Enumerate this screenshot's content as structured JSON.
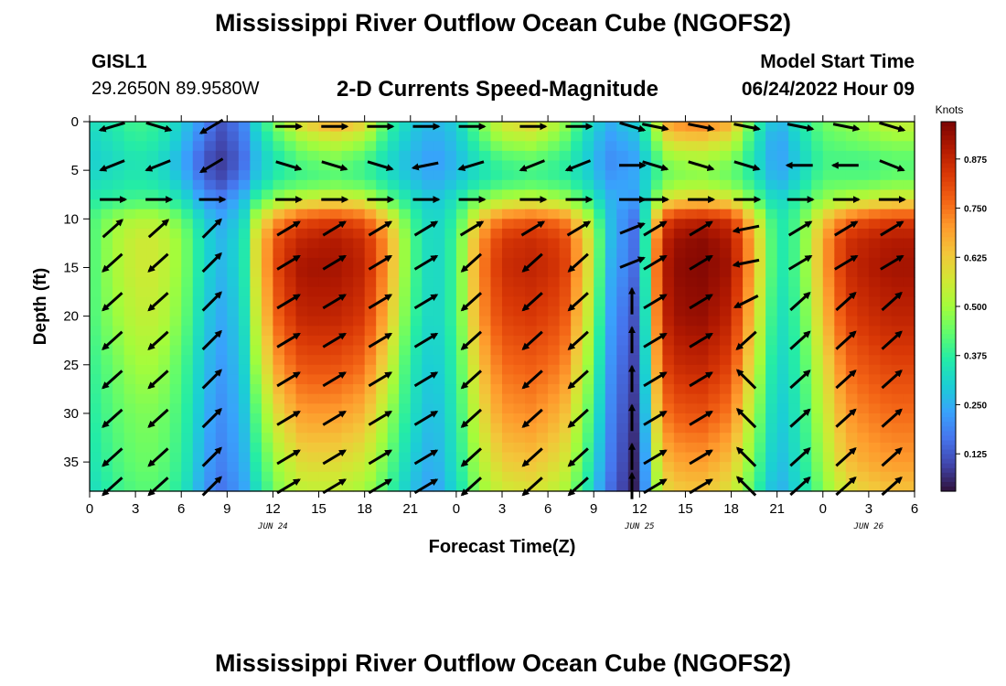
{
  "header": {
    "title": "Mississippi River Outflow Ocean Cube (NGOFS2)",
    "station": "GISL1",
    "coords": "29.2650N  89.9580W",
    "subtitle": "2-D Currents Speed-Magnitude",
    "model_start_label": "Model Start Time",
    "model_start_value": "06/24/2022 Hour 09",
    "footer_title": "Mississippi River Outflow Ocean Cube (NGOFS2)"
  },
  "colors": {
    "colormap": [
      "#30123b",
      "#4145ab",
      "#4675ed",
      "#39a2fc",
      "#1bcfd4",
      "#24eca6",
      "#61fc6c",
      "#a4fc3b",
      "#d1e834",
      "#f3c63a",
      "#fe9b2d",
      "#f36315",
      "#d93806",
      "#b11901",
      "#7a0403"
    ]
  },
  "chart_data": {
    "type": "heatmap",
    "title": "2-D Currents Speed-Magnitude",
    "xlabel": "Forecast Time(Z)",
    "ylabel": "Depth (ft)",
    "colorbar_label": "Knots",
    "x_tick_labels": [
      "0",
      "3",
      "6",
      "9",
      "12",
      "15",
      "18",
      "21",
      "0",
      "3",
      "6",
      "9",
      "12",
      "15",
      "18",
      "21",
      "0",
      "3",
      "6"
    ],
    "date_labels": [
      {
        "label": "JUN 24",
        "hour": 12
      },
      {
        "label": "JUN 25",
        "hour": 36
      },
      {
        "label": "JUN 26",
        "hour": 51
      }
    ],
    "xlim": [
      0,
      54
    ],
    "y_ticks": [
      0,
      5,
      10,
      15,
      20,
      25,
      30,
      35
    ],
    "ylim": [
      0,
      38
    ],
    "colorbar_ticks": [
      0.125,
      0.25,
      0.375,
      0.5,
      0.625,
      0.75,
      0.875
    ],
    "colorbar_tick_labels": [
      "0.125",
      "0.250",
      "0.375",
      "0.500",
      "0.625",
      "0.750",
      "0.875"
    ],
    "colorbar_range": [
      0.03,
      0.97
    ],
    "speed_field": {
      "x_hours": [
        0,
        1.5,
        3,
        4.5,
        6,
        7.5,
        8.5,
        10,
        11,
        12.5,
        14,
        16,
        18,
        19.5,
        21,
        22.5,
        24,
        25.5,
        27,
        29,
        31,
        32.5,
        34,
        35.5,
        36,
        37,
        38,
        40,
        42,
        43.5,
        45,
        46.5,
        48,
        49.5,
        51,
        52.5,
        54
      ],
      "depths_ft": [
        0,
        2,
        4,
        6,
        8,
        10,
        12,
        15,
        20,
        25,
        30,
        35,
        38
      ],
      "knots": [
        [
          0.33,
          0.36,
          0.4,
          0.38,
          0.3,
          0.2,
          0.12,
          0.18,
          0.34,
          0.5,
          0.62,
          0.7,
          0.62,
          0.4,
          0.3,
          0.26,
          0.3,
          0.45,
          0.58,
          0.62,
          0.5,
          0.35,
          0.25,
          0.3,
          0.3,
          0.52,
          0.72,
          0.75,
          0.68,
          0.4,
          0.25,
          0.35,
          0.45,
          0.48,
          0.5,
          0.55,
          0.55
        ],
        [
          0.31,
          0.34,
          0.38,
          0.36,
          0.28,
          0.16,
          0.1,
          0.16,
          0.3,
          0.42,
          0.5,
          0.55,
          0.5,
          0.36,
          0.28,
          0.24,
          0.28,
          0.4,
          0.5,
          0.52,
          0.44,
          0.32,
          0.22,
          0.26,
          0.28,
          0.45,
          0.6,
          0.62,
          0.56,
          0.36,
          0.22,
          0.32,
          0.42,
          0.44,
          0.46,
          0.48,
          0.48
        ],
        [
          0.3,
          0.32,
          0.35,
          0.33,
          0.25,
          0.12,
          0.08,
          0.14,
          0.28,
          0.36,
          0.42,
          0.45,
          0.4,
          0.32,
          0.26,
          0.22,
          0.26,
          0.34,
          0.4,
          0.42,
          0.38,
          0.3,
          0.2,
          0.22,
          0.25,
          0.38,
          0.48,
          0.5,
          0.46,
          0.34,
          0.22,
          0.3,
          0.4,
          0.4,
          0.4,
          0.42,
          0.42
        ],
        [
          0.32,
          0.34,
          0.36,
          0.34,
          0.28,
          0.15,
          0.1,
          0.18,
          0.3,
          0.38,
          0.4,
          0.42,
          0.4,
          0.34,
          0.28,
          0.24,
          0.28,
          0.34,
          0.38,
          0.4,
          0.38,
          0.32,
          0.22,
          0.24,
          0.26,
          0.38,
          0.46,
          0.48,
          0.44,
          0.36,
          0.24,
          0.32,
          0.42,
          0.42,
          0.42,
          0.44,
          0.44
        ],
        [
          0.36,
          0.38,
          0.4,
          0.4,
          0.34,
          0.22,
          0.18,
          0.26,
          0.4,
          0.5,
          0.55,
          0.58,
          0.55,
          0.44,
          0.34,
          0.28,
          0.34,
          0.46,
          0.52,
          0.54,
          0.5,
          0.4,
          0.26,
          0.22,
          0.24,
          0.46,
          0.6,
          0.62,
          0.58,
          0.44,
          0.3,
          0.38,
          0.48,
          0.52,
          0.55,
          0.58,
          0.58
        ],
        [
          0.4,
          0.48,
          0.52,
          0.52,
          0.44,
          0.3,
          0.24,
          0.3,
          0.55,
          0.72,
          0.8,
          0.82,
          0.78,
          0.62,
          0.4,
          0.3,
          0.38,
          0.62,
          0.75,
          0.78,
          0.74,
          0.55,
          0.28,
          0.16,
          0.18,
          0.62,
          0.85,
          0.88,
          0.84,
          0.6,
          0.34,
          0.42,
          0.62,
          0.75,
          0.8,
          0.82,
          0.82
        ],
        [
          0.4,
          0.5,
          0.56,
          0.56,
          0.48,
          0.32,
          0.26,
          0.32,
          0.62,
          0.82,
          0.88,
          0.9,
          0.86,
          0.7,
          0.42,
          0.3,
          0.4,
          0.7,
          0.84,
          0.86,
          0.82,
          0.62,
          0.28,
          0.16,
          0.16,
          0.7,
          0.92,
          0.95,
          0.9,
          0.66,
          0.34,
          0.42,
          0.68,
          0.85,
          0.88,
          0.9,
          0.9
        ],
        [
          0.4,
          0.5,
          0.56,
          0.56,
          0.48,
          0.32,
          0.26,
          0.32,
          0.62,
          0.84,
          0.92,
          0.92,
          0.88,
          0.7,
          0.42,
          0.3,
          0.4,
          0.72,
          0.86,
          0.88,
          0.84,
          0.62,
          0.26,
          0.16,
          0.14,
          0.72,
          0.94,
          0.96,
          0.92,
          0.66,
          0.34,
          0.42,
          0.68,
          0.86,
          0.9,
          0.92,
          0.92
        ],
        [
          0.4,
          0.48,
          0.54,
          0.54,
          0.46,
          0.3,
          0.24,
          0.3,
          0.58,
          0.8,
          0.88,
          0.88,
          0.84,
          0.66,
          0.4,
          0.3,
          0.4,
          0.7,
          0.82,
          0.84,
          0.8,
          0.58,
          0.24,
          0.12,
          0.12,
          0.7,
          0.92,
          0.94,
          0.88,
          0.62,
          0.32,
          0.4,
          0.64,
          0.82,
          0.86,
          0.88,
          0.88
        ],
        [
          0.38,
          0.44,
          0.5,
          0.5,
          0.42,
          0.28,
          0.22,
          0.28,
          0.52,
          0.72,
          0.8,
          0.8,
          0.76,
          0.58,
          0.36,
          0.28,
          0.38,
          0.64,
          0.76,
          0.78,
          0.74,
          0.52,
          0.22,
          0.1,
          0.1,
          0.66,
          0.86,
          0.88,
          0.82,
          0.56,
          0.3,
          0.38,
          0.58,
          0.76,
          0.8,
          0.82,
          0.82
        ],
        [
          0.36,
          0.42,
          0.46,
          0.46,
          0.4,
          0.26,
          0.2,
          0.26,
          0.44,
          0.62,
          0.7,
          0.7,
          0.66,
          0.5,
          0.34,
          0.26,
          0.36,
          0.58,
          0.7,
          0.72,
          0.66,
          0.46,
          0.2,
          0.08,
          0.08,
          0.6,
          0.78,
          0.8,
          0.74,
          0.5,
          0.28,
          0.36,
          0.54,
          0.7,
          0.74,
          0.76,
          0.76
        ],
        [
          0.34,
          0.4,
          0.44,
          0.44,
          0.38,
          0.24,
          0.18,
          0.24,
          0.38,
          0.52,
          0.6,
          0.6,
          0.56,
          0.44,
          0.3,
          0.24,
          0.34,
          0.52,
          0.62,
          0.64,
          0.58,
          0.4,
          0.18,
          0.06,
          0.06,
          0.52,
          0.68,
          0.7,
          0.64,
          0.44,
          0.26,
          0.34,
          0.5,
          0.64,
          0.68,
          0.7,
          0.7
        ],
        [
          0.32,
          0.38,
          0.42,
          0.42,
          0.36,
          0.22,
          0.16,
          0.22,
          0.34,
          0.48,
          0.54,
          0.54,
          0.5,
          0.4,
          0.28,
          0.22,
          0.32,
          0.48,
          0.56,
          0.58,
          0.52,
          0.36,
          0.16,
          0.05,
          0.05,
          0.48,
          0.62,
          0.64,
          0.58,
          0.4,
          0.24,
          0.32,
          0.46,
          0.58,
          0.62,
          0.64,
          0.64
        ]
      ]
    },
    "vectors": {
      "depths_ft": [
        0.5,
        4.5,
        8,
        11,
        14.5,
        18.5,
        22.5,
        26.5,
        30.5,
        34.5,
        37.5
      ],
      "x_hours": [
        1.5,
        4.5,
        8,
        13,
        16,
        19,
        22,
        25,
        29,
        32,
        35.5,
        37,
        40,
        43,
        46.5,
        49.5,
        52.5
      ],
      "u_components": [
        [
          -1,
          1,
          -1,
          1,
          1,
          1,
          1,
          1,
          1,
          1,
          1,
          1,
          1,
          1,
          1,
          1,
          1
        ],
        [
          -1,
          -1,
          -1,
          1,
          1,
          1,
          -1,
          -1,
          -1,
          -1,
          1,
          1,
          1,
          1,
          -1,
          -1,
          1
        ],
        [
          1,
          1,
          1,
          1,
          1,
          1,
          1,
          1,
          1,
          1,
          1,
          1,
          1,
          1,
          1,
          1,
          1
        ],
        [
          1,
          1,
          1,
          1,
          1,
          1,
          1,
          1,
          1,
          1,
          1,
          1,
          1,
          -1,
          1,
          1,
          1
        ],
        [
          -1,
          -1,
          1,
          1,
          1,
          1,
          1,
          -1,
          -1,
          -1,
          1,
          1,
          1,
          -1,
          1,
          1,
          1
        ],
        [
          -1,
          -1,
          1,
          1,
          1,
          1,
          1,
          -1,
          -1,
          -1,
          0,
          1,
          1,
          -1,
          1,
          1,
          1
        ],
        [
          -1,
          -1,
          1,
          1,
          1,
          1,
          1,
          -1,
          -1,
          -1,
          0,
          1,
          1,
          -1,
          1,
          1,
          1
        ],
        [
          -1,
          -1,
          1,
          1,
          1,
          1,
          1,
          -1,
          -1,
          -1,
          0,
          1,
          1,
          -1,
          1,
          1,
          1
        ],
        [
          -1,
          -1,
          1,
          1,
          1,
          1,
          1,
          -1,
          -1,
          -1,
          0,
          1,
          1,
          -1,
          1,
          1,
          1
        ],
        [
          -1,
          -1,
          1,
          1,
          1,
          1,
          1,
          -1,
          -1,
          -1,
          0,
          1,
          1,
          -1,
          1,
          1,
          1
        ],
        [
          -1,
          -1,
          1,
          1,
          1,
          1,
          1,
          -1,
          -1,
          -1,
          0,
          1,
          1,
          -1,
          1,
          1,
          1
        ]
      ],
      "v_components": [
        [
          0.3,
          0.3,
          0.6,
          0,
          0,
          0,
          0,
          0,
          0,
          0,
          0.3,
          0.2,
          0.2,
          0.2,
          0.2,
          0.2,
          0.3
        ],
        [
          0.4,
          0.4,
          0.6,
          0.3,
          0.3,
          0.3,
          0.2,
          0.3,
          0.4,
          0.4,
          0,
          0.3,
          0.3,
          0.3,
          0,
          0,
          0.4
        ],
        [
          0,
          0,
          0,
          0,
          0,
          0,
          0,
          0,
          0,
          0,
          0,
          0,
          0,
          0,
          0,
          0,
          0
        ],
        [
          -0.9,
          -0.9,
          -1,
          -0.6,
          -0.6,
          -0.6,
          -0.6,
          -0.6,
          -0.6,
          -0.6,
          -0.4,
          -0.6,
          -0.6,
          0.2,
          -0.6,
          -0.6,
          -0.6
        ],
        [
          0.9,
          0.9,
          -1,
          -0.6,
          -0.6,
          -0.6,
          -0.6,
          0.9,
          0.9,
          0.9,
          -0.4,
          -0.6,
          -0.6,
          0.2,
          -0.6,
          -0.6,
          -0.6
        ],
        [
          0.9,
          0.9,
          -1,
          -0.6,
          -0.6,
          -0.6,
          -0.6,
          0.9,
          0.9,
          0.9,
          -1,
          -0.6,
          -0.6,
          0.5,
          -0.9,
          -0.9,
          -0.9
        ],
        [
          0.9,
          0.9,
          -1,
          -0.6,
          -0.6,
          -0.6,
          -0.6,
          0.9,
          0.9,
          0.9,
          -1,
          -0.6,
          -0.6,
          0.9,
          -0.9,
          -0.9,
          -0.9
        ],
        [
          0.9,
          0.9,
          -1,
          -0.6,
          -0.6,
          -0.6,
          -0.6,
          0.9,
          0.9,
          0.9,
          -1,
          -0.6,
          -0.6,
          -1,
          -0.9,
          -0.9,
          -0.9
        ],
        [
          0.9,
          0.9,
          -1,
          -0.6,
          -0.6,
          -0.6,
          -0.6,
          0.9,
          0.9,
          0.9,
          -1,
          -0.6,
          -0.6,
          -1,
          -0.9,
          -0.9,
          -0.9
        ],
        [
          0.9,
          0.9,
          -1,
          -0.6,
          -0.6,
          -0.6,
          -0.6,
          0.9,
          0.9,
          0.9,
          -1,
          -0.6,
          -0.6,
          -1,
          -0.9,
          -0.9,
          -0.9
        ],
        [
          0.9,
          0.9,
          -1,
          -0.6,
          -0.6,
          -0.6,
          -0.6,
          0.9,
          0.9,
          0.9,
          -1,
          -0.6,
          -0.6,
          -1,
          -0.9,
          -0.9,
          -0.9
        ]
      ]
    }
  }
}
